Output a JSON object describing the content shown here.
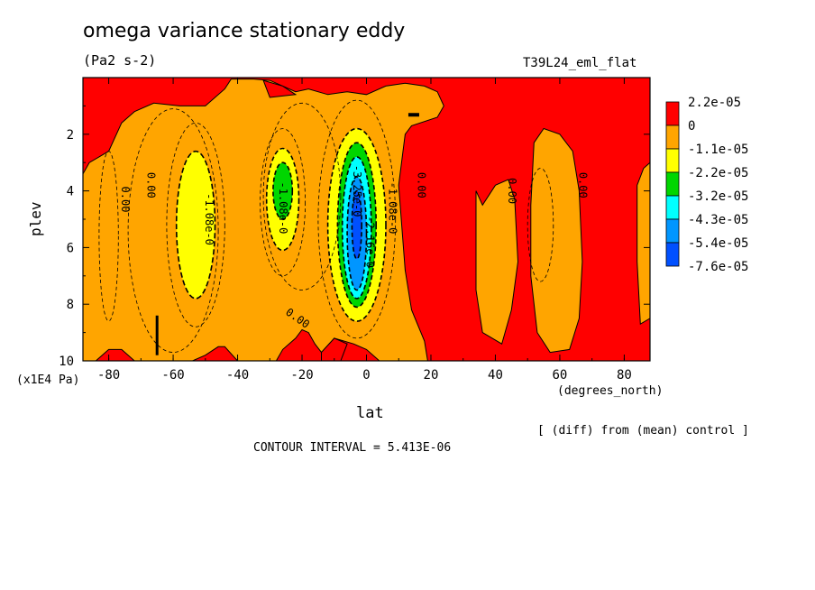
{
  "title": "omega variance stationary eddy",
  "units": "(Pa2 s-2)",
  "run_label": "T39L24_eml_flat",
  "diff_note": "[ (diff) from (mean) control ]",
  "contour_interval_text": "CONTOUR INTERVAL = 5.413E-06",
  "colors": {
    "red": "#ff0000",
    "orange": "#ffa500",
    "yellow": "#ffff00",
    "green": "#00d600",
    "cyan": "#00ffff",
    "lightblue": "#0096ff",
    "blue": "#0050ff"
  },
  "chart_data": {
    "type": "heatmap",
    "title": "omega variance stationary eddy",
    "xlabel": "lat",
    "xunits": "(degrees_north)",
    "ylabel": "plev",
    "yunits": "(x1E4 Pa)",
    "xlim": [
      -88,
      88
    ],
    "ylim": [
      10,
      0
    ],
    "xticks": [
      -80,
      -60,
      -40,
      -20,
      0,
      20,
      40,
      60,
      80
    ],
    "yticks": [
      2,
      4,
      6,
      8,
      10
    ],
    "legend_levels": [
      "2.2e-05",
      "0",
      "-1.1e-05",
      "-2.2e-05",
      "-3.2e-05",
      "-4.3e-05",
      "-5.4e-05",
      "-7.6e-05"
    ],
    "legend_colors": [
      "#ff0000",
      "#ffa500",
      "#ffff00",
      "#00d600",
      "#00ffff",
      "#0096ff",
      "#0050ff"
    ],
    "contour_labels": [
      "0.00",
      "0.00",
      "0.00",
      "0.00",
      "0.00",
      "0.00",
      "-1.08e-0",
      "-1.08e-0",
      "-1.08e-0",
      "-2.16e-0",
      "-3.25e-0"
    ],
    "contour_interval": 5.413e-06,
    "regions": [
      {
        "level": "-1.1e-05",
        "center": [
          -53,
          5.2
        ],
        "halfwidth": [
          6,
          2.6
        ]
      },
      {
        "level": "-1.1e-05",
        "center": [
          -26,
          4.3
        ],
        "halfwidth": [
          5,
          1.8
        ]
      },
      {
        "level": "-2.2e-05",
        "center": [
          -26,
          4.0
        ],
        "halfwidth": [
          3,
          1.0
        ]
      },
      {
        "level": "-1.1e-05",
        "center": [
          -3,
          5.2
        ],
        "halfwidth": [
          9,
          3.4
        ]
      },
      {
        "level": "-2.2e-05",
        "center": [
          -3,
          5.2
        ],
        "halfwidth": [
          6,
          2.9
        ]
      },
      {
        "level": "-3.2e-05",
        "center": [
          -3,
          5.3
        ],
        "halfwidth": [
          4.5,
          2.5
        ]
      },
      {
        "level": "-4.3e-05",
        "center": [
          -3,
          5.5
        ],
        "halfwidth": [
          3,
          2.0
        ]
      },
      {
        "level": "-5.4e-05",
        "center": [
          -3,
          5.2
        ],
        "halfwidth": [
          1.5,
          1.2
        ]
      }
    ]
  }
}
